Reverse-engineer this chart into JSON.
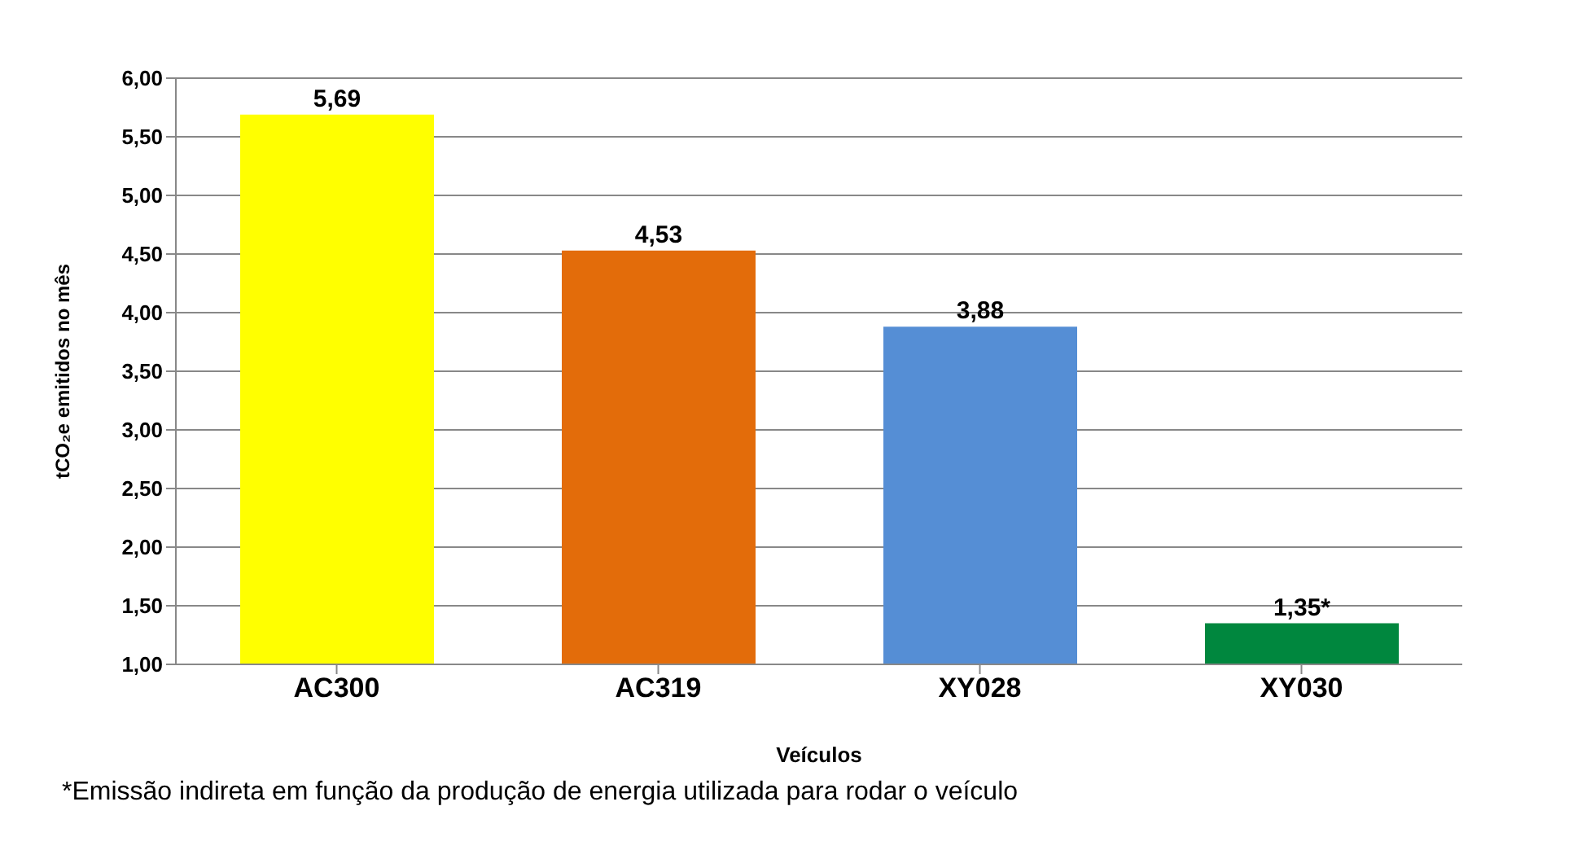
{
  "chart_data": {
    "type": "bar",
    "xlabel": "Veículos",
    "ylabel": "tCO₂e emitidos no mês",
    "categories": [
      "AC300",
      "AC319",
      "XY028",
      "XY030"
    ],
    "values": [
      5.69,
      4.53,
      3.88,
      1.35
    ],
    "colors": [
      "#ffff00",
      "#e36c0a",
      "#558ed5",
      "#00873e"
    ],
    "value_labels": [
      "5,69",
      "4,53",
      "3,88",
      "1,35*"
    ],
    "ylim": [
      1,
      6
    ],
    "yticks": [
      {
        "value": 1,
        "label": "1,00"
      },
      {
        "value": 1.5,
        "label": "1,50"
      },
      {
        "value": 2,
        "label": "2,00"
      },
      {
        "value": 2.5,
        "label": "2,50"
      },
      {
        "value": 3,
        "label": "3,00"
      },
      {
        "value": 3.5,
        "label": "3,50"
      },
      {
        "value": 4,
        "label": "4,00"
      },
      {
        "value": 4.5,
        "label": "4,50"
      },
      {
        "value": 5,
        "label": "5,00"
      },
      {
        "value": 5.5,
        "label": "5,50"
      },
      {
        "value": 6,
        "label": "6,00"
      }
    ],
    "grid": "y",
    "annotations": [
      "*Emissão indireta em função da produção de energia utilizada para rodar o veículo"
    ]
  }
}
